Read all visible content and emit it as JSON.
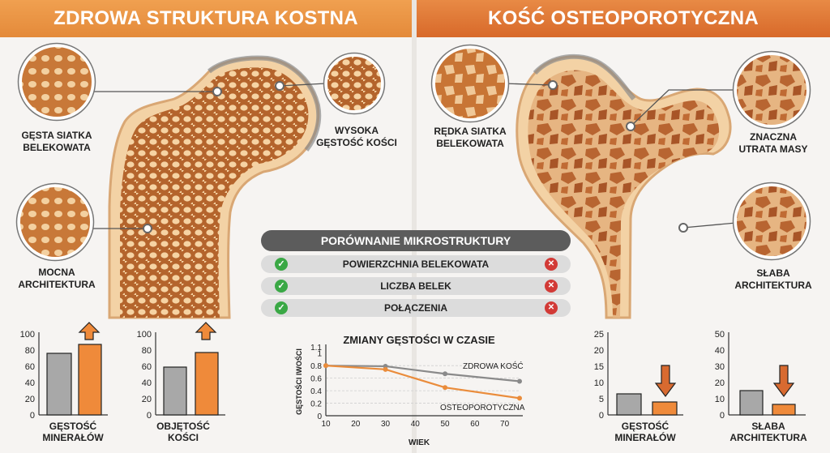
{
  "headers": {
    "healthy": "ZDROWA STRUKTURA KOSTNA",
    "osteo": "KOŚĆ OSTEOPOROTYCZNA"
  },
  "callouts": {
    "dense_mesh": [
      "GĘSTA SIATKA",
      "BELEKOWATA"
    ],
    "high_density": [
      "WYSOKA",
      "GĘSTOŚĆ KOŚCI"
    ],
    "strong_arch": [
      "MOCNA",
      "ARCHITEKTURA"
    ],
    "sparse_mesh": [
      "RĘDKA SIATKA",
      "BELEKOWATA"
    ],
    "mass_loss": [
      "ZNACZNA",
      "UTRATA MASY"
    ],
    "weak_arch": [
      "SŁABA",
      "ARCHITEKTURA"
    ]
  },
  "comparison": {
    "title": "PORÓWNANIE MIKROSTRUKTURY",
    "rows": [
      "POWIERZCHNIA BELEKOWATA",
      "LICZBA BELEK",
      "POŁĄCZENIA"
    ]
  },
  "colors": {
    "healthy_bar": "#ef8a3a",
    "reference_bar": "#a8a8a8",
    "osteo_line": "#ea8c3b",
    "healthy_line": "#8a8a8a",
    "check": "#3aa845",
    "cross": "#d23a36"
  },
  "icons": {
    "up": "arrow-up-icon",
    "down": "arrow-down-icon",
    "check": "check-icon",
    "cross": "cross-icon"
  },
  "chart_data": [
    {
      "type": "bar",
      "caption": [
        "GĘSTOŚĆ",
        "MINERAŁÓW"
      ],
      "yticks": [
        0,
        20,
        40,
        60,
        80,
        100
      ],
      "ylim": [
        0,
        100
      ],
      "values": [
        76,
        87
      ],
      "arrow": "up"
    },
    {
      "type": "bar",
      "caption": [
        "OBJĘTOŚĆ",
        "KOŚCI"
      ],
      "yticks": [
        0,
        20,
        40,
        60,
        80,
        100
      ],
      "ylim": [
        0,
        100
      ],
      "values": [
        59,
        77
      ],
      "arrow": "up"
    },
    {
      "type": "line",
      "title": "ZMIANY GĘSTOŚCI W CZASIE",
      "xlabel": "WIEK",
      "ylabel": "GĘSTOŚCI IWOŚCI",
      "xticks": [
        10,
        20,
        30,
        40,
        50,
        60,
        70
      ],
      "yticks": [
        0,
        0.2,
        0.4,
        0.6,
        0.8,
        1.0,
        1.1
      ],
      "xlim": [
        10,
        75
      ],
      "ylim": [
        0,
        1.1
      ],
      "series": [
        {
          "name": "ZDROWA KOŚĆ",
          "x": [
            10,
            30,
            50,
            75
          ],
          "y": [
            0.8,
            0.79,
            0.67,
            0.55
          ]
        },
        {
          "name": "OSTEOPOROTYCZNA",
          "x": [
            10,
            30,
            50,
            75
          ],
          "y": [
            0.8,
            0.74,
            0.45,
            0.28
          ]
        }
      ]
    },
    {
      "type": "bar",
      "caption": [
        "GĘSTOŚĆ",
        "MINERAŁÓW"
      ],
      "yticks": [
        0,
        5,
        10,
        15,
        20,
        25
      ],
      "ylim": [
        0,
        25
      ],
      "values": [
        6.5,
        4
      ],
      "arrow": "down"
    },
    {
      "type": "bar",
      "caption": [
        "SŁABA",
        "ARCHITEKTURA"
      ],
      "yticks": [
        0,
        10,
        20,
        30,
        40,
        50
      ],
      "ylim": [
        0,
        50
      ],
      "values": [
        15,
        6.5
      ],
      "arrow": "down"
    }
  ]
}
